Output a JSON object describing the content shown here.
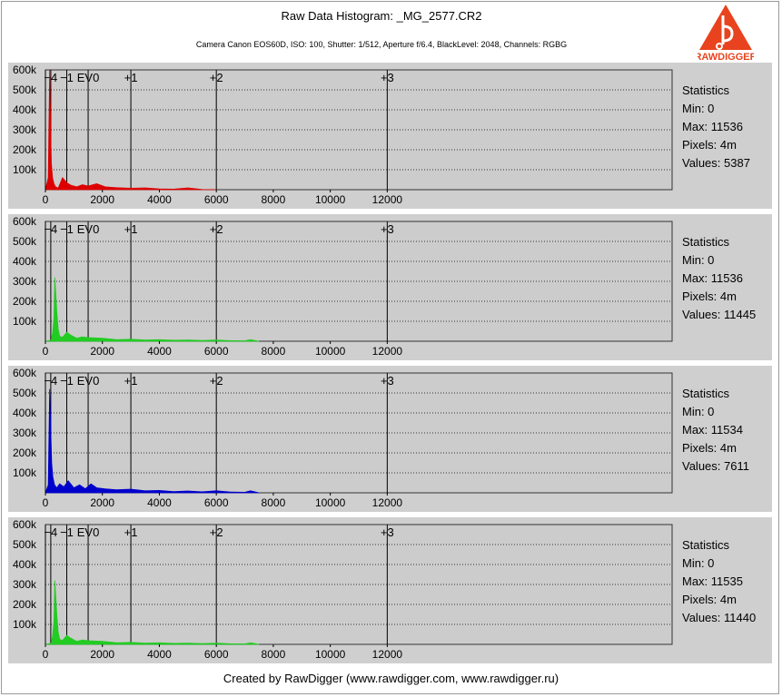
{
  "header": {
    "title": "Raw Data Histogram: _MG_2577.CR2",
    "subtitle": "Camera Canon EOS60D, ISO: 100, Shutter: 1/512, Aperture f/6.4, BlackLevel: 2048, Channels: RGBG"
  },
  "logo": {
    "text": "RAWDIGGER",
    "icon": "rawdigger-logo"
  },
  "footer": {
    "text": "Created by RawDigger (www.rawdigger.com, www.rawdigger.ru)"
  },
  "colors": {
    "red": "#dd0000",
    "green": "#22cc22",
    "blue": "#0000cc",
    "panel": "#cfcfcf",
    "plot": "#cccccc"
  },
  "chart_data": [
    {
      "type": "area",
      "channel": "R",
      "color": "#dd0000",
      "xlim": [
        0,
        22000
      ],
      "ylim": [
        0,
        600000
      ],
      "x_ticks": [
        0,
        2000,
        4000,
        6000,
        8000,
        10000,
        12000
      ],
      "x_tick_labels": [
        "0",
        "2000",
        "4000",
        "6000",
        "8000",
        "10000",
        "12000"
      ],
      "y_ticks": [
        100000,
        200000,
        300000,
        400000,
        500000,
        600000
      ],
      "y_tick_labels": [
        "100k",
        "200k",
        "300k",
        "400k",
        "500k",
        "600k"
      ],
      "ev_marks": [
        {
          "label": "−4",
          "x": 188
        },
        {
          "label": "−1",
          "x": 750
        },
        {
          "label": "EV0",
          "x": 1500
        },
        {
          "label": "+1",
          "x": 3000
        },
        {
          "label": "+2",
          "x": 6000
        },
        {
          "label": "+3",
          "x": 12000
        }
      ],
      "x": [
        0,
        100,
        150,
        190,
        210,
        250,
        300,
        350,
        450,
        600,
        750,
        900,
        1100,
        1300,
        1500,
        1800,
        2100,
        2500,
        3000,
        3500,
        4000,
        4500,
        5000,
        5500,
        6000
      ],
      "values": [
        0,
        60000,
        600000,
        250000,
        130000,
        60000,
        30000,
        15000,
        8000,
        60000,
        35000,
        22000,
        14000,
        25000,
        18000,
        30000,
        14000,
        10000,
        7000,
        9000,
        4000,
        3000,
        9000,
        1000,
        0
      ],
      "statistics": {
        "heading": "Statistics",
        "min": "Min: 0",
        "max": "Max: 11536",
        "pixels": "Pixels: 4m",
        "values": "Values: 5387"
      }
    },
    {
      "type": "area",
      "channel": "G",
      "color": "#22cc22",
      "xlim": [
        0,
        22000
      ],
      "ylim": [
        0,
        600000
      ],
      "x_ticks": [
        0,
        2000,
        4000,
        6000,
        8000,
        10000,
        12000
      ],
      "x_tick_labels": [
        "0",
        "2000",
        "4000",
        "6000",
        "8000",
        "10000",
        "12000"
      ],
      "y_ticks": [
        100000,
        200000,
        300000,
        400000,
        500000,
        600000
      ],
      "y_tick_labels": [
        "100k",
        "200k",
        "300k",
        "400k",
        "500k",
        "600k"
      ],
      "ev_marks": [
        {
          "label": "−4",
          "x": 188
        },
        {
          "label": "−1",
          "x": 750
        },
        {
          "label": "EV0",
          "x": 1500
        },
        {
          "label": "+1",
          "x": 3000
        },
        {
          "label": "+2",
          "x": 6000
        },
        {
          "label": "+3",
          "x": 12000
        }
      ],
      "x": [
        0,
        200,
        250,
        300,
        330,
        360,
        400,
        450,
        500,
        600,
        750,
        900,
        1100,
        1300,
        1500,
        2000,
        2500,
        3000,
        3500,
        4000,
        4500,
        5000,
        5500,
        6000,
        6500,
        7000,
        7200,
        7500
      ],
      "values": [
        0,
        5000,
        40000,
        120000,
        320000,
        250000,
        150000,
        60000,
        25000,
        20000,
        45000,
        30000,
        15000,
        22000,
        18000,
        15000,
        8000,
        10000,
        6000,
        8000,
        5000,
        6000,
        4000,
        6000,
        3000,
        2000,
        8000,
        0
      ],
      "statistics": {
        "heading": "Statistics",
        "min": "Min: 0",
        "max": "Max: 11536",
        "pixels": "Pixels: 4m",
        "values": "Values: 11445"
      }
    },
    {
      "type": "area",
      "channel": "B",
      "color": "#0000cc",
      "xlim": [
        0,
        22000
      ],
      "ylim": [
        0,
        600000
      ],
      "x_ticks": [
        0,
        2000,
        4000,
        6000,
        8000,
        10000,
        12000
      ],
      "x_tick_labels": [
        "0",
        "2000",
        "4000",
        "6000",
        "8000",
        "10000",
        "12000"
      ],
      "y_ticks": [
        100000,
        200000,
        300000,
        400000,
        500000,
        600000
      ],
      "y_tick_labels": [
        "100k",
        "200k",
        "300k",
        "400k",
        "500k",
        "600k"
      ],
      "ev_marks": [
        {
          "label": "−4",
          "x": 188
        },
        {
          "label": "−1",
          "x": 750
        },
        {
          "label": "EV0",
          "x": 1500
        },
        {
          "label": "+1",
          "x": 3000
        },
        {
          "label": "+2",
          "x": 6000
        },
        {
          "label": "+3",
          "x": 12000
        }
      ],
      "x": [
        0,
        100,
        150,
        190,
        220,
        260,
        320,
        400,
        500,
        650,
        800,
        1000,
        1200,
        1400,
        1600,
        1800,
        2100,
        2500,
        3000,
        3500,
        4000,
        4500,
        5000,
        5500,
        6000,
        6500,
        7000,
        7200,
        7500
      ],
      "values": [
        0,
        40000,
        520000,
        300000,
        150000,
        80000,
        40000,
        25000,
        45000,
        30000,
        60000,
        25000,
        40000,
        20000,
        45000,
        25000,
        20000,
        15000,
        18000,
        10000,
        12000,
        6000,
        9000,
        5000,
        10000,
        4000,
        3000,
        10000,
        0
      ],
      "statistics": {
        "heading": "Statistics",
        "min": "Min: 0",
        "max": "Max: 11534",
        "pixels": "Pixels: 4m",
        "values": "Values: 7611"
      }
    },
    {
      "type": "area",
      "channel": "G2",
      "color": "#22cc22",
      "xlim": [
        0,
        22000
      ],
      "ylim": [
        0,
        600000
      ],
      "x_ticks": [
        0,
        2000,
        4000,
        6000,
        8000,
        10000,
        12000
      ],
      "x_tick_labels": [
        "0",
        "2000",
        "4000",
        "6000",
        "8000",
        "10000",
        "12000"
      ],
      "y_ticks": [
        100000,
        200000,
        300000,
        400000,
        500000,
        600000
      ],
      "y_tick_labels": [
        "100k",
        "200k",
        "300k",
        "400k",
        "500k",
        "600k"
      ],
      "ev_marks": [
        {
          "label": "−4",
          "x": 188
        },
        {
          "label": "−1",
          "x": 750
        },
        {
          "label": "EV0",
          "x": 1500
        },
        {
          "label": "+1",
          "x": 3000
        },
        {
          "label": "+2",
          "x": 6000
        },
        {
          "label": "+3",
          "x": 12000
        }
      ],
      "x": [
        0,
        200,
        250,
        300,
        330,
        360,
        400,
        450,
        500,
        600,
        750,
        900,
        1100,
        1300,
        1500,
        2000,
        2500,
        3000,
        3500,
        4000,
        4500,
        5000,
        5500,
        6000,
        6500,
        7000,
        7200,
        7500
      ],
      "values": [
        0,
        5000,
        40000,
        120000,
        320000,
        250000,
        150000,
        60000,
        25000,
        20000,
        45000,
        30000,
        15000,
        22000,
        18000,
        15000,
        8000,
        10000,
        6000,
        8000,
        5000,
        6000,
        4000,
        6000,
        3000,
        2000,
        8000,
        0
      ],
      "statistics": {
        "heading": "Statistics",
        "min": "Min: 0",
        "max": "Max: 11535",
        "pixels": "Pixels: 4m",
        "values": "Values: 11440"
      }
    }
  ]
}
